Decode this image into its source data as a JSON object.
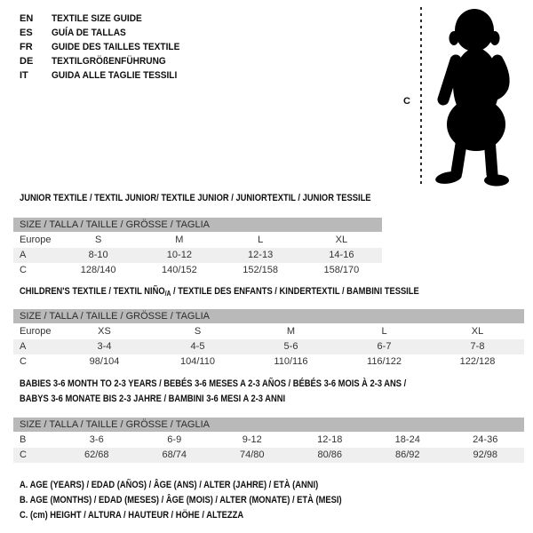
{
  "header": {
    "languages": [
      {
        "code": "EN",
        "title": "TEXTILE SIZE GUIDE"
      },
      {
        "code": "ES",
        "title": "GUÍA DE TALLAS"
      },
      {
        "code": "FR",
        "title": "GUIDE DES TAILLES TEXTILE"
      },
      {
        "code": "DE",
        "title": "TEXTILGRÖßENFÜHRUNG"
      },
      {
        "code": "IT",
        "title": "GUIDA ALLE TAGLIE TESSILI"
      }
    ],
    "figure_label": "C"
  },
  "tables": [
    {
      "name": "junior",
      "title_lines": [
        "JUNIOR TEXTILE / TEXTIL JUNIOR/ TEXTILE JUNIOR / JUNIORTEXTIL / JUNIOR TESSILE"
      ],
      "size_header": "SIZE / TALLA / TAILLE / GRÖSSE / TAGLIA",
      "rows": [
        {
          "label": "Europe",
          "shade": false,
          "values": [
            "S",
            "M",
            "L",
            "XL"
          ]
        },
        {
          "label": "A",
          "shade": true,
          "values": [
            "8-10",
            "10-12",
            "12-13",
            "14-16"
          ]
        },
        {
          "label": "C",
          "shade": false,
          "values": [
            "128/140",
            "140/152",
            "152/158",
            "158/170"
          ]
        }
      ]
    },
    {
      "name": "children",
      "title_parts": {
        "pre": "CHILDREN'S TEXTILE / TEXTIL NIÑO",
        "sub": "/A",
        "post": " / TEXTILE DES ENFANTS / KINDERTEXTIL / BAMBINI TESSILE"
      },
      "size_header": "SIZE / TALLA / TAILLE / GRÖSSE / TAGLIA",
      "rows": [
        {
          "label": "Europe",
          "shade": false,
          "values": [
            "XS",
            "S",
            "M",
            "L",
            "XL"
          ]
        },
        {
          "label": "A",
          "shade": true,
          "values": [
            "3-4",
            "4-5",
            "5-6",
            "6-7",
            "7-8"
          ]
        },
        {
          "label": "C",
          "shade": false,
          "values": [
            "98/104",
            "104/110",
            "110/116",
            "116/122",
            "122/128"
          ]
        }
      ]
    },
    {
      "name": "babies",
      "title_lines": [
        "BABIES 3-6 MONTH TO 2-3 YEARS / BEBÉS 3-6 MESES A 2-3 AÑOS / BÉBÉS 3-6 MOIS À 2-3 ANS /",
        "BABYS 3-6 MONATE BIS 2-3 JAHRE / BAMBINI 3-6 MESI A 2-3 ANNI"
      ],
      "size_header": "SIZE / TALLA / TAILLE / GRÖSSE / TAGLIA",
      "rows": [
        {
          "label": "B",
          "shade": false,
          "values": [
            "3-6",
            "6-9",
            "9-12",
            "12-18",
            "18-24",
            "24-36"
          ]
        },
        {
          "label": "C",
          "shade": true,
          "values": [
            "62/68",
            "68/74",
            "74/80",
            "80/86",
            "86/92",
            "92/98"
          ]
        }
      ]
    }
  ],
  "footnotes": [
    "A. AGE (YEARS) / EDAD (AÑOS) / ÂGE (ANS) / ALTER (JAHRE) / ETÀ (ANNI)",
    "B. AGE (MONTHS) / EDAD (MESES) / ÂGE (MOIS) / ALTER (MONATE) / ETÀ (MESI)",
    "C. (cm) HEIGHT / ALTURA / HAUTEUR / HÖHE / ALTEZZA"
  ],
  "colors": {
    "header_bar": "#b9b9b9",
    "row_shade": "#efefef",
    "silhouette": "#000000"
  }
}
